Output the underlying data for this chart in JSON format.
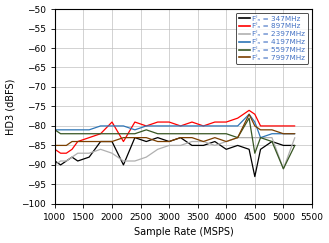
{
  "xlabel": "Sample Rate (MSPS)",
  "ylabel": "HD3 (dBFS)",
  "xlim": [
    1000,
    5500
  ],
  "ylim": [
    -100,
    -50
  ],
  "yticks": [
    -100,
    -95,
    -90,
    -85,
    -80,
    -75,
    -70,
    -65,
    -60,
    -55,
    -50
  ],
  "xticks": [
    1000,
    1500,
    2000,
    2500,
    3000,
    3500,
    4000,
    4500,
    5000,
    5500
  ],
  "series": [
    {
      "label": "Fᴵₙ = 347MHz",
      "color": "#000000",
      "x": [
        1000,
        1100,
        1200,
        1300,
        1400,
        1600,
        1800,
        2000,
        2200,
        2400,
        2600,
        2800,
        3000,
        3200,
        3400,
        3600,
        3800,
        4000,
        4200,
        4400,
        4500,
        4600,
        4800,
        5000,
        5200
      ],
      "y": [
        -89,
        -90,
        -89,
        -88,
        -89,
        -88,
        -84,
        -84,
        -90,
        -83,
        -84,
        -83,
        -84,
        -83,
        -85,
        -85,
        -84,
        -86,
        -85,
        -86,
        -93,
        -86,
        -84,
        -85,
        -85
      ]
    },
    {
      "label": "Fᴵₙ = 897MHz",
      "color": "#ff0000",
      "x": [
        1000,
        1100,
        1200,
        1300,
        1400,
        1600,
        1800,
        2000,
        2200,
        2400,
        2600,
        2800,
        3000,
        3200,
        3400,
        3600,
        3800,
        4000,
        4200,
        4400,
        4500,
        4600,
        4800,
        5000,
        5200
      ],
      "y": [
        -86,
        -87,
        -87,
        -86,
        -84,
        -83,
        -82,
        -79,
        -84,
        -79,
        -80,
        -79,
        -79,
        -80,
        -79,
        -80,
        -79,
        -79,
        -78,
        -76,
        -77,
        -80,
        -80,
        -80,
        -80
      ]
    },
    {
      "label": "Fᴵₙ = 2397MHz",
      "color": "#b0b0b0",
      "x": [
        1000,
        1100,
        1200,
        1300,
        1400,
        1600,
        1800,
        2000,
        2200,
        2400,
        2600,
        2800,
        3000,
        3200,
        3400,
        3600,
        3800,
        4000,
        4200,
        4400,
        4500,
        4600,
        4800,
        5000,
        5200
      ],
      "y": [
        -90,
        -89,
        -89,
        -88,
        -87,
        -87,
        -86,
        -87,
        -89,
        -89,
        -88,
        -86,
        -85,
        -85,
        -84,
        -84,
        -85,
        -84,
        -83,
        -83,
        -83,
        -83,
        -83,
        -91,
        -83
      ]
    },
    {
      "label": "Fᴵₙ = 4197MHz",
      "color": "#2e75b6",
      "x": [
        1000,
        1100,
        1200,
        1300,
        1400,
        1600,
        1800,
        2000,
        2200,
        2400,
        2600,
        2800,
        3000,
        3200,
        3400,
        3600,
        3800,
        4000,
        4200,
        4400,
        4500,
        4600,
        4800,
        5000,
        5200
      ],
      "y": [
        -81,
        -81,
        -81,
        -81,
        -81,
        -81,
        -80,
        -80,
        -80,
        -81,
        -80,
        -80,
        -80,
        -80,
        -80,
        -80,
        -80,
        -80,
        -80,
        -77,
        -79,
        -83,
        -82,
        -82,
        -82
      ]
    },
    {
      "label": "Fᴵₙ = 5597MHz",
      "color": "#375623",
      "x": [
        1000,
        1100,
        1200,
        1300,
        1400,
        1600,
        1800,
        2000,
        2200,
        2400,
        2600,
        2800,
        3000,
        3200,
        3400,
        3600,
        3800,
        4000,
        4200,
        4400,
        4500,
        4600,
        4800,
        5000,
        5200
      ],
      "y": [
        -81,
        -82,
        -82,
        -82,
        -82,
        -82,
        -82,
        -82,
        -82,
        -82,
        -81,
        -82,
        -82,
        -82,
        -82,
        -82,
        -82,
        -82,
        -83,
        -78,
        -87,
        -83,
        -84,
        -91,
        -85
      ]
    },
    {
      "label": "Fᴵₙ = 7997MHz",
      "color": "#7b3f00",
      "x": [
        1000,
        1100,
        1200,
        1300,
        1400,
        1600,
        1800,
        2000,
        2200,
        2400,
        2600,
        2800,
        3000,
        3200,
        3400,
        3600,
        3800,
        4000,
        4200,
        4400,
        4500,
        4600,
        4800,
        5000,
        5200
      ],
      "y": [
        -85,
        -85,
        -85,
        -84,
        -84,
        -84,
        -84,
        -84,
        -83,
        -83,
        -83,
        -84,
        -84,
        -83,
        -83,
        -84,
        -83,
        -84,
        -83,
        -77,
        -80,
        -81,
        -81,
        -82,
        -82
      ]
    }
  ],
  "legend_label_color": "#4472c4",
  "background_color": "#ffffff",
  "grid_color": "#c0c0c0",
  "linewidth": 0.9,
  "legend_fontsize": 5.2,
  "axis_fontsize": 7.0,
  "tick_fontsize": 6.5
}
